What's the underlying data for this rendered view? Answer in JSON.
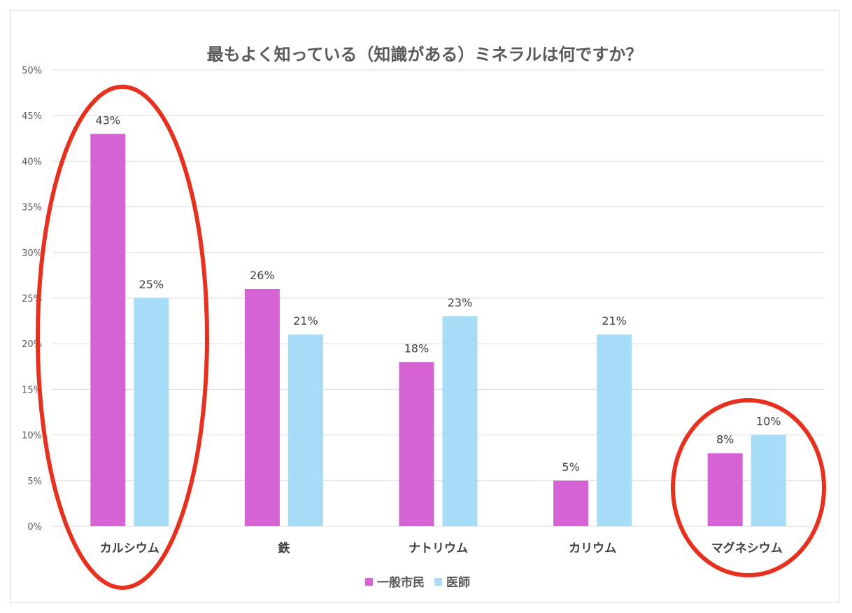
{
  "chart_data": {
    "type": "bar",
    "title": "最もよく知っている（知識がある）ミネラルは何ですか？",
    "categories": [
      "カルシウム",
      "鉄",
      "ナトリウム",
      "カリウム",
      "マグネシウム"
    ],
    "series": [
      {
        "name": "一般市民",
        "values": [
          43,
          26,
          18,
          5,
          8
        ],
        "color": "#d563d3"
      },
      {
        "name": "医師",
        "values": [
          25,
          21,
          23,
          21,
          10
        ],
        "color": "#a6dcf5"
      }
    ],
    "data_labels": [
      [
        "43%",
        "26%",
        "18%",
        "5%",
        "8%"
      ],
      [
        "25%",
        "21%",
        "23%",
        "21%",
        "10%"
      ]
    ],
    "ylim": [
      0,
      50
    ],
    "yticks": [
      "0%",
      "5%",
      "10%",
      "15%",
      "20%",
      "25%",
      "30%",
      "35%",
      "40%",
      "45%",
      "50%"
    ],
    "grid": true,
    "legend": "bottom",
    "highlighted_categories": [
      "カルシウム",
      "マグネシウム"
    ],
    "highlight_color": "#e8301f"
  }
}
